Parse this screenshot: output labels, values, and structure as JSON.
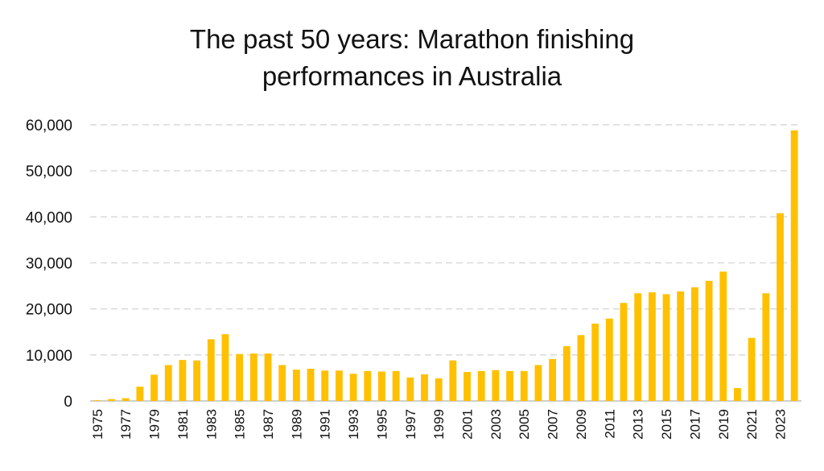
{
  "chart_data": {
    "type": "bar",
    "title_lines": [
      "The past 50 years: Marathon finishing",
      "performances in Australia"
    ],
    "ylim": [
      0,
      60000
    ],
    "y_ticks": [
      "0",
      "10,000",
      "20,000",
      "30,000",
      "40,000",
      "50,000",
      "60,000"
    ],
    "grid": "horizontal dashed",
    "colors": {
      "bar": "#FFC000",
      "grid": "#D9D9D9",
      "axis": "#BFBFBF"
    },
    "categories": [
      "1975",
      "1976",
      "1977",
      "1978",
      "1979",
      "1980",
      "1981",
      "1982",
      "1983",
      "1984",
      "1985",
      "1986",
      "1987",
      "1988",
      "1989",
      "1990",
      "1991",
      "1992",
      "1993",
      "1994",
      "1995",
      "1996",
      "1997",
      "1998",
      "1999",
      "2000",
      "2001",
      "2002",
      "2003",
      "2004",
      "2005",
      "2006",
      "2007",
      "2008",
      "2009",
      "2010",
      "2011",
      "2012",
      "2013",
      "2014",
      "2015",
      "2016",
      "2017",
      "2018",
      "2019",
      "2020",
      "2021",
      "2022",
      "2023",
      "2024"
    ],
    "x_tick_labels": [
      "1975",
      "1977",
      "1979",
      "1981",
      "1983",
      "1985",
      "1987",
      "1989",
      "1991",
      "1993",
      "1995",
      "1997",
      "1999",
      "2001",
      "2003",
      "2005",
      "2007",
      "2009",
      "2011",
      "2013",
      "2015",
      "2017",
      "2019",
      "2021",
      "2023"
    ],
    "values": [
      150,
      400,
      600,
      3100,
      5700,
      7800,
      8900,
      8800,
      13400,
      14500,
      10200,
      10300,
      10300,
      7800,
      6800,
      7000,
      6600,
      6600,
      5900,
      6500,
      6400,
      6500,
      5100,
      5800,
      4900,
      8800,
      6300,
      6500,
      6700,
      6500,
      6500,
      7800,
      9100,
      11900,
      14300,
      16800,
      17900,
      21300,
      23400,
      23600,
      23200,
      23800,
      24700,
      26100,
      28100,
      2800,
      13700,
      23400,
      40800,
      58800
    ]
  }
}
